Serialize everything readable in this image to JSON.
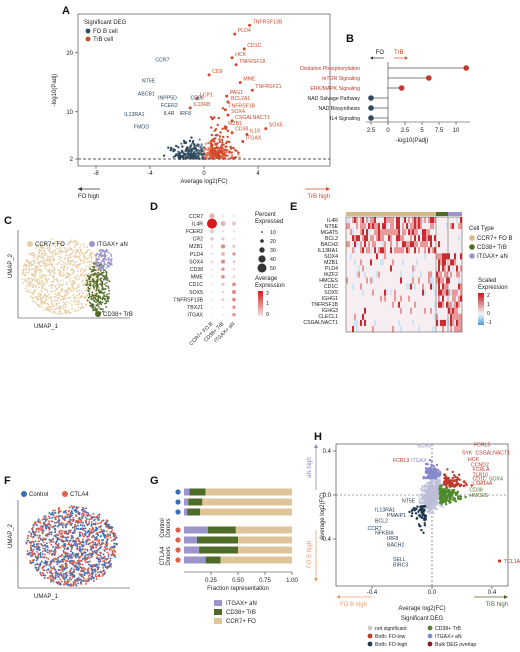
{
  "panels": {
    "A": {
      "label": "A",
      "legend_title": "Significant DEG",
      "legend_items": [
        {
          "name": "FO B cell",
          "color": "#2e4a5f"
        },
        {
          "name": "TrB cell",
          "color": "#d24a2a"
        }
      ],
      "xlabel": "Average log2(FC)",
      "ylabel": "-log10(Padj)",
      "xticks": [
        "-8",
        "-4",
        "0",
        "4"
      ],
      "yticks": [
        "2",
        "10",
        "20"
      ],
      "arrow_left": "FO high",
      "arrow_right": "TrB high",
      "red_genes": [
        "TNFRSF13B",
        "PLD4",
        "CD1C",
        "HCK",
        "TNFRSF18",
        "CD9",
        "MME",
        "TNFRSF21",
        "PAG1",
        "LCP1",
        "BCL2A1",
        "IL10RB",
        "TNFRSF1B",
        "SOX4",
        "CSGALNACT1",
        "MZB1",
        "SOX5",
        "CD38",
        "IL18",
        "ITGAX"
      ],
      "blue_genes": [
        "CCR7",
        "NT5E",
        "ABCB1",
        "INPP5D",
        "CD86",
        "FCER2",
        "IL4R",
        "IRF8",
        "IL13RA1",
        "FMOD"
      ]
    },
    "B": {
      "label": "B",
      "legend_left": "FO",
      "legend_right": "TrB",
      "xlabel": "-log10(Padj)",
      "xticks": [
        "2.5",
        "0",
        "2.5",
        "5",
        "7.5",
        "10"
      ],
      "pathways": [
        {
          "name": "Oxidative Phosphorylation",
          "value": 11.5,
          "color": "#c0392b"
        },
        {
          "name": "mTOR Signaling",
          "value": 6.0,
          "color": "#c0392b"
        },
        {
          "name": "ERK/MAPK Signaling",
          "value": 2.0,
          "color": "#c0392b"
        },
        {
          "name": "NAD Salvage Pathway",
          "value": -2.5,
          "color": "#2e4a5f"
        },
        {
          "name": "NAD Biosynthesis",
          "value": -2.5,
          "color": "#2e4a5f"
        },
        {
          "name": "IL4 Signaling",
          "value": -2.5,
          "color": "#2e4a5f"
        }
      ]
    },
    "C": {
      "label": "C",
      "xlabel": "UMAP_1",
      "ylabel": "UMAP_2",
      "clusters": [
        {
          "name": "CCR7+ FO",
          "color": "#e8cfa6"
        },
        {
          "name": "ITGAX+ aN",
          "color": "#9c95cc"
        },
        {
          "name": "CD38+ TrB",
          "color": "#4f6b28"
        }
      ]
    },
    "D": {
      "label": "D",
      "genes": [
        "CCR7",
        "IL4R",
        "FCER2",
        "CR2",
        "MZB1",
        "PLD4",
        "SOX4",
        "CD38",
        "MME",
        "CD1C",
        "SOX5",
        "TNFRSF13B",
        "TBX21",
        "ITGAX"
      ],
      "groups": [
        "CCR7+ FO B",
        "CD38+ TrB",
        "ITGAX+ aN"
      ],
      "size_legend_title": "Percent Expressed",
      "size_values": [
        "10",
        "20",
        "30",
        "40",
        "50"
      ],
      "color_legend_title": "Average Expression",
      "color_ticks": [
        "2",
        "1",
        "0"
      ]
    },
    "E": {
      "label": "E",
      "gene_group1": [
        "IL4R",
        "NT5E",
        "MGAT5",
        "BCL2",
        "BACH2",
        "IL13RA1"
      ],
      "gene_group2": [
        "SOX4",
        "MZB1",
        "PLD4",
        "IKZF2",
        "HMCES",
        "CD1C"
      ],
      "gene_group3": [
        "SOX5",
        "IGHG1",
        "TNFRSF1B",
        "IGHG3",
        "CLECL1",
        "CSGALNACT1"
      ],
      "legend_title": "Cell Type",
      "legend_items": [
        {
          "name": "CCR7+ FO B",
          "color": "#d8b98a"
        },
        {
          "name": "CD38+ TrB",
          "color": "#4f6b28"
        },
        {
          "name": "ITGAX+ aN",
          "color": "#9c95cc"
        }
      ],
      "scale_title": "Scaled Expression",
      "scale_ticks": [
        "2",
        "1",
        "0",
        "-1"
      ]
    },
    "F": {
      "label": "F",
      "legend": [
        {
          "name": "Control",
          "color": "#3a6fb7"
        },
        {
          "name": "CTLA4",
          "color": "#e0604a"
        }
      ],
      "xlabel": "UMAP_1",
      "ylabel": "UMAP_2"
    },
    "G": {
      "label": "G",
      "xlabel": "Fraction representation",
      "xticks": [
        "0.25",
        "0.50",
        "0.75",
        "1.00"
      ],
      "group_labels": [
        "Control Donors",
        "CTLA4 Donors"
      ],
      "legend": [
        {
          "name": "ITGAX+ aN",
          "color": "#9c95cc"
        },
        {
          "name": "CD38+ TrB",
          "color": "#4f6b28"
        },
        {
          "name": "CCR7+ FO",
          "color": "#e0c49a"
        }
      ]
    },
    "H": {
      "label": "H",
      "xlabel": "Average log2(FC)",
      "ylabel": "Average log2(FC)",
      "xticks": [
        "-0.4",
        "0.0",
        "0.4"
      ],
      "yticks": [
        "0.4",
        "0.0",
        "-0.4"
      ],
      "arrow_up": "aN high",
      "arrow_down": "FO B high",
      "arrow_left": "FO B high",
      "arrow_right": "TrB high",
      "legend_title": "Significant DEG",
      "legend_items": [
        {
          "name": "not significant",
          "color": "#cccccc"
        },
        {
          "name": "CD38+ TrB",
          "color": "#4f8a2a"
        },
        {
          "name": "Both: FO-low",
          "color": "#c0392b"
        },
        {
          "name": "ITGAX+ aN",
          "color": "#8888cc"
        },
        {
          "name": "Both: FO-high",
          "color": "#1f3a52"
        },
        {
          "name": "Bulk DEG overlap",
          "color": "#8b1a1a"
        }
      ],
      "red_genes": [
        "FCRL5",
        "SYK",
        "CSGALNACT1",
        "HCK",
        "CCND2",
        "FCRLA",
        "TLR10",
        "CD1C",
        "LSM14A",
        "FCRL3"
      ],
      "green_genes": [
        "SOX4",
        "CD38",
        "HMCES"
      ],
      "purple_genes": [
        "SOX5",
        "ITGAX"
      ],
      "dark_genes": [
        "NT5E",
        "IL13RA1",
        "PMAIP1",
        "BCL2",
        "CCR7",
        "NFKBIA",
        "IRF8",
        "BACH2",
        "SELL",
        "BIRC3"
      ],
      "other_genes": [
        "TCL1A"
      ]
    }
  },
  "chart_data": [
    {
      "type": "bar",
      "title": "",
      "xlabel": "-log10(Padj)",
      "categories": [
        "Oxidative Phosphorylation",
        "mTOR Signaling",
        "ERK/MAPK Signaling",
        "NAD Salvage Pathway",
        "NAD Biosynthesis",
        "IL4 Signaling"
      ],
      "values": [
        11.5,
        6.0,
        2.0,
        -2.5,
        -2.5,
        -2.5
      ]
    },
    {
      "type": "bar",
      "title": "",
      "xlabel": "Fraction representation",
      "categories": [
        "Control 1",
        "Control 2",
        "Control 3",
        "CTLA4 1",
        "CTLA4 2",
        "CTLA4 3",
        "CTLA4 4"
      ],
      "series": [
        {
          "name": "ITGAX+ aN",
          "values": [
            0.05,
            0.04,
            0.03,
            0.22,
            0.12,
            0.14,
            0.2
          ]
        },
        {
          "name": "CD38+ TrB",
          "values": [
            0.15,
            0.13,
            0.12,
            0.26,
            0.38,
            0.36,
            0.14
          ]
        },
        {
          "name": "CCR7+ FO",
          "values": [
            0.8,
            0.83,
            0.85,
            0.52,
            0.5,
            0.5,
            0.66
          ]
        }
      ],
      "xlim": [
        0,
        1
      ]
    }
  ]
}
